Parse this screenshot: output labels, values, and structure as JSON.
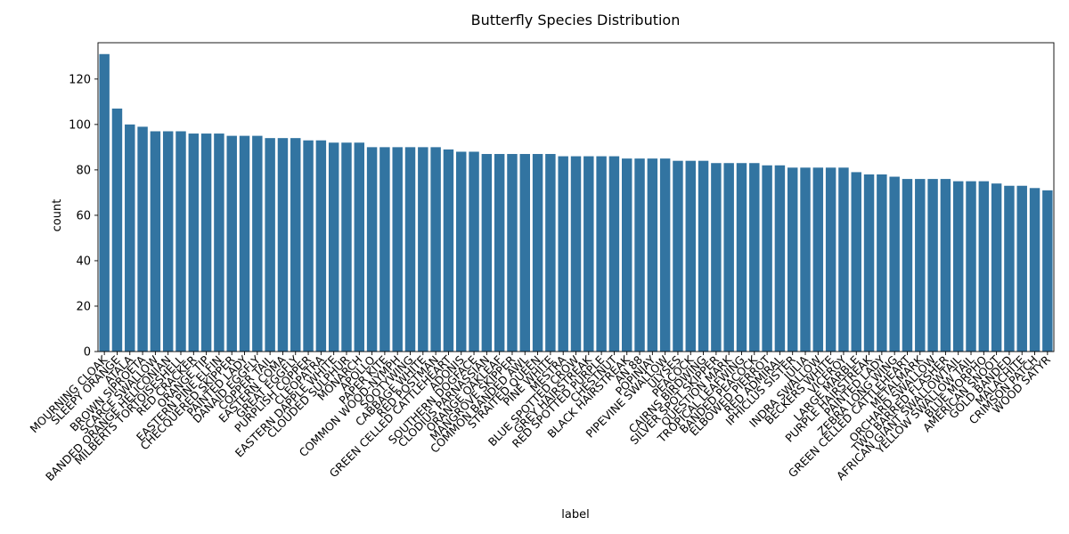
{
  "chart_data": {
    "type": "bar",
    "title": "Butterfly Species Distribution",
    "xlabel": "label",
    "ylabel": "count",
    "ylim": [
      0,
      136
    ],
    "yticks": [
      0,
      20,
      40,
      60,
      80,
      100,
      120
    ],
    "bar_color": "#3274a1",
    "grid": false,
    "categories": [
      "MOURNING CLOAK",
      "SLEEPY ORANGE",
      "ATALA",
      "BROWN SIPROETA",
      "SCARCE SWALLOW",
      "BANDED ORANGE HELICONIAN",
      "MILBERTS TORTOISESHELL",
      "RED CRACKER",
      "ORANGE TIP",
      "EASTERN PINE ELFIN",
      "CHECQUERED SKIPPER",
      "PAINTED LADY",
      "DANAID EGGFLY",
      "COPPER TAIL",
      "EASTERN COMA",
      "GREAT EGGFLY",
      "PURPLISH COPPER",
      "CLEOPATRA",
      "EASTERN DAPPLE WHITE",
      "CLOUDED SULPHUR",
      "MONARCH",
      "APOLLO",
      "PAPER KITE",
      "COMMON WOOD-NYMPH",
      "SOOTYWING",
      "CABBAGE WHITE",
      "RED POSTMAN",
      "GREEN CELLED CATTLEHEART",
      "ADONIS",
      "SOUTHERN DOGFACE",
      "CLODIUS PARNASSIAN",
      "ORANGE OAKLEAF",
      "MANGROVE SKIPPER",
      "COMMON BANDED AWL",
      "STRAITED QUEEN",
      "PINE WHITE",
      "MESTRA",
      "BLUE SPOTTED CROW",
      "GREY HAIRSTREAK",
      "RED SPOTTED PURPLE",
      "CHESTNUT",
      "BLACK HAIRSTREAK",
      "AN 88",
      "POPINJAY",
      "PIPEVINE SWALLOW",
      "ULYSES",
      "PEACOCK",
      "CAIRNS BIRDWING",
      "SILVER SPOT SKIPPER",
      "QUESTION MARK",
      "TROPICAL LEAFWING",
      "BANDED PEACOCK",
      "ELBOWED PIERROT",
      "RED ADMIRAL",
      "IPHICLUS SISTER",
      "JULIA",
      "INDRA SWALLOW",
      "BECKERS WHITE",
      "VICEROY",
      "LARGE MARBLE",
      "PURPLE HAIRSTREAK",
      "PAINTED LADY",
      "ZEBRA LONG WING",
      "GREEN CELLED CATTLEHEART",
      "METALMARK",
      "ORCHARD SWALLOW",
      "TWO BARRED FLASHER",
      "AFRICAN GIANT SWALLOWTAIL",
      "YELLOW SWALLOW TAIL",
      "BLUE MORPHO",
      "AMERICAN SNOOT",
      "GOLD BANDED",
      "MALACHITE",
      "CRIMSON PATCH",
      "WOOD SATYR"
    ],
    "values": [
      131,
      107,
      100,
      99,
      97,
      97,
      97,
      96,
      96,
      96,
      95,
      95,
      95,
      94,
      94,
      94,
      93,
      93,
      92,
      92,
      92,
      90,
      90,
      90,
      90,
      90,
      90,
      89,
      88,
      88,
      87,
      87,
      87,
      87,
      87,
      87,
      86,
      86,
      86,
      86,
      86,
      85,
      85,
      85,
      85,
      84,
      84,
      84,
      83,
      83,
      83,
      83,
      82,
      82,
      81,
      81,
      81,
      81,
      81,
      79,
      78,
      78,
      77,
      76,
      76,
      76,
      76,
      75,
      75,
      75,
      74,
      73,
      73,
      72,
      71
    ]
  }
}
